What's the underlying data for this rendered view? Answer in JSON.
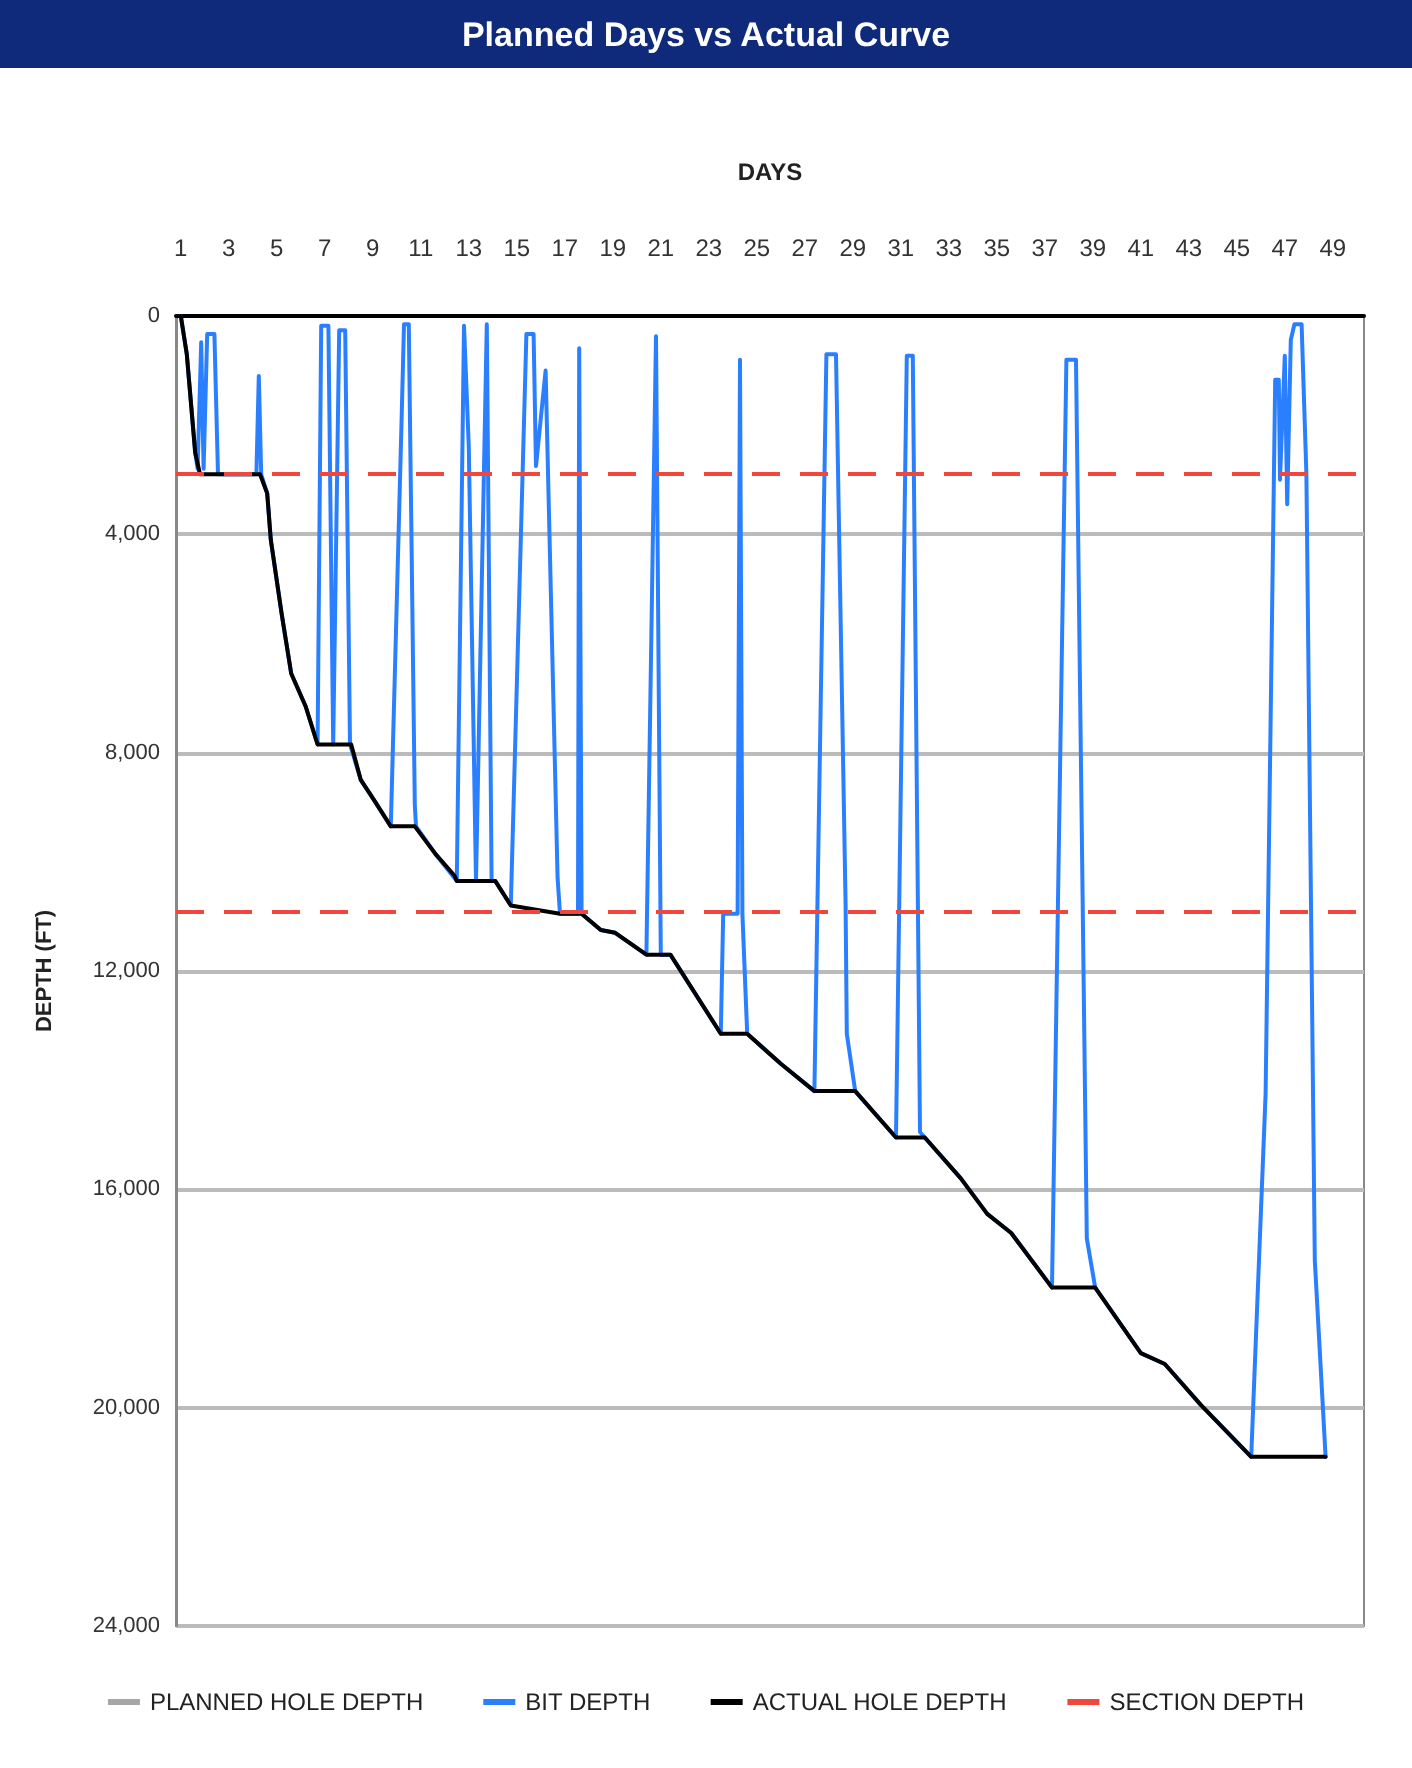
{
  "chart_data": {
    "type": "line",
    "title": "Planned Days vs Actual Curve",
    "xlabel": "DAYS",
    "ylabel": "DEPTH (FT)",
    "xlim": [
      0.8,
      50.3
    ],
    "xticks": [
      1,
      3,
      5,
      7,
      9,
      11,
      13,
      15,
      17,
      19,
      21,
      23,
      25,
      27,
      29,
      31,
      33,
      35,
      37,
      39,
      41,
      43,
      45,
      47,
      49
    ],
    "ylim": [
      24000,
      0
    ],
    "yticks": [
      0,
      {
        "value": 4000,
        "label": "4,000"
      },
      {
        "value": 8000,
        "label": "8,000"
      },
      {
        "value": 12000,
        "label": "12,000"
      },
      {
        "value": 16000,
        "label": "16,000"
      },
      {
        "value": 20000,
        "label": "20,000"
      },
      {
        "value": 24000,
        "label": "24,000"
      }
    ],
    "grid": "y",
    "legend": "bottom",
    "marker": "none",
    "line_style": "solid",
    "series": [
      {
        "name": "PLANNED HOLE DEPTH",
        "color": "#a6a6a6"
      },
      {
        "name": "BIT DEPTH",
        "color": "#2a7fff",
        "x": [
          1,
          1.25,
          1.6,
          1.7,
          1.85,
          1.95,
          2.1,
          2.4,
          2.55,
          4.15,
          4.25,
          4.35,
          4.6,
          4.75,
          5.2,
          5.6,
          6.2,
          6.7,
          6.85,
          7.15,
          7.35,
          7.6,
          7.85,
          8.05,
          8.5,
          9.1,
          9.75,
          10.2,
          10.3,
          10.5,
          10.75,
          10.8,
          11.6,
          12.5,
          12.8,
          13,
          13.3,
          13.75,
          13.95,
          14.1,
          14.75,
          15.4,
          15.7,
          15.8,
          16.2,
          16.7,
          16.8,
          17.55,
          17.6,
          17.7,
          18.5,
          19.1,
          20.4,
          20.8,
          21,
          21.4,
          23.5,
          23.6,
          24.2,
          24.3,
          24.4,
          24.6,
          26,
          27.4,
          27.9,
          28.3,
          28.7,
          28.75,
          29.1,
          30.8,
          31.25,
          31.5,
          31.8,
          32,
          33.5,
          34.6,
          35.6,
          37.3,
          37.9,
          38.3,
          38.75,
          39.1,
          41,
          42,
          43.5,
          45.6,
          46.2,
          46.6,
          46.75,
          46.8,
          47,
          47.1,
          47.25,
          47.4,
          47.7,
          47.9,
          48.25,
          48.7
        ],
        "values": [
          0,
          700,
          2500,
          2800,
          480,
          2800,
          330,
          330,
          2900,
          2900,
          1100,
          2900,
          3250,
          4100,
          5450,
          6550,
          7150,
          7850,
          180,
          180,
          7850,
          260,
          260,
          7850,
          8500,
          8900,
          9350,
          1900,
          150,
          150,
          8950,
          9350,
          9850,
          10350,
          180,
          2400,
          10350,
          150,
          10350,
          10350,
          10800,
          330,
          330,
          2750,
          1000,
          10300,
          10950,
          10950,
          590,
          10950,
          11250,
          11300,
          11700,
          370,
          11700,
          11700,
          13150,
          10950,
          10950,
          800,
          10950,
          13150,
          13700,
          14200,
          700,
          700,
          10800,
          13150,
          14200,
          15050,
          730,
          730,
          14950,
          15050,
          15800,
          16450,
          16800,
          17800,
          800,
          800,
          16900,
          17800,
          19000,
          19200,
          19950,
          20900,
          14250,
          1170,
          1170,
          3000,
          730,
          3450,
          440,
          150,
          150,
          2900,
          17300,
          20900
        ]
      },
      {
        "name": "ACTUAL HOLE DEPTH",
        "color": "#000000",
        "x": [
          1,
          1.25,
          1.6,
          1.8,
          4.3,
          4.6,
          4.75,
          5.2,
          5.6,
          6.2,
          6.7,
          8.1,
          8.5,
          9.1,
          9.75,
          10.75,
          11.6,
          12.4,
          12.5,
          14.1,
          14.75,
          16.8,
          17.7,
          18.5,
          19.1,
          20.4,
          21.4,
          23.5,
          24.6,
          26,
          27.4,
          29.1,
          30.8,
          32,
          33.5,
          34.6,
          35.6,
          37.3,
          39.1,
          41,
          42,
          43.5,
          45.6,
          48.7
        ],
        "values": [
          0,
          700,
          2500,
          2900,
          2900,
          3250,
          4100,
          5450,
          6550,
          7150,
          7850,
          7850,
          8500,
          8900,
          9350,
          9350,
          9850,
          10250,
          10350,
          10350,
          10800,
          10950,
          10950,
          11250,
          11300,
          11700,
          11700,
          13150,
          13150,
          13700,
          14200,
          14200,
          15050,
          15050,
          15800,
          16450,
          16800,
          17800,
          17800,
          19000,
          19200,
          19950,
          20900,
          20900
        ]
      }
    ],
    "ref_lines": [
      {
        "axis": "y",
        "value": 2900,
        "label": "SECTION DEPTH",
        "color": "#f0463c",
        "line_style": "dashed"
      },
      {
        "axis": "y",
        "value": 10900,
        "color": "#f0463c",
        "line_style": "dashed"
      }
    ]
  }
}
